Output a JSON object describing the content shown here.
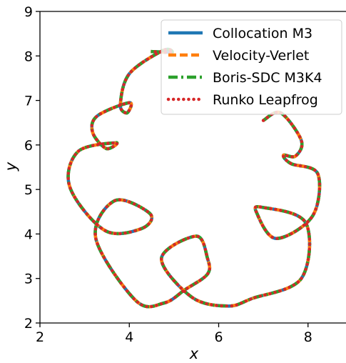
{
  "chart_data": {
    "type": "line",
    "title": "",
    "xlabel": "x",
    "ylabel": "y",
    "xlim": [
      2.0,
      8.85
    ],
    "ylim": [
      2.0,
      9.0
    ],
    "xticks": [
      2,
      4,
      6,
      8
    ],
    "yticks": [
      2,
      3,
      4,
      5,
      6,
      7,
      8,
      9
    ],
    "xtick_labels": [
      "2",
      "4",
      "6",
      "8"
    ],
    "ytick_labels": [
      "2",
      "3",
      "4",
      "5",
      "6",
      "7",
      "8",
      "9"
    ],
    "grid": false,
    "legend_position": "top-right",
    "trajectory": {
      "x": [
        7.0,
        7.39,
        7.85,
        7.72,
        7.45,
        7.62,
        8.22,
        8.1,
        7.28,
        6.85,
        6.97,
        7.95,
        7.85,
        6.75,
        6.2,
        5.4,
        4.72,
        5.5,
        5.75,
        5.75,
        5.25,
        4.78,
        4.15,
        3.25,
        3.68,
        4.47,
        4.27,
        3.45,
        2.67,
        2.85,
        3.7,
        3.48,
        3.18,
        3.28,
        4.0,
        3.95,
        3.8,
        4.0,
        4.75,
        4.95,
        4.48
      ],
      "y": [
        6.55,
        6.72,
        6.1,
        5.75,
        5.77,
        5.58,
        5.35,
        4.4,
        3.9,
        4.48,
        4.6,
        4.25,
        3.0,
        2.55,
        2.38,
        2.58,
        3.45,
        3.95,
        3.45,
        3.1,
        2.75,
        2.45,
        2.5,
        3.9,
        4.75,
        4.45,
        4.12,
        4.08,
        5.05,
        5.85,
        6.05,
        5.92,
        6.28,
        6.65,
        6.95,
        6.72,
        6.9,
        7.6,
        8.12,
        8.08,
        8.1
      ]
    },
    "series": [
      {
        "name": "Collocation M3",
        "color": "#1f77b4",
        "style": "solid"
      },
      {
        "name": "Velocity-Verlet",
        "color": "#ff7f0e",
        "style": "dashed"
      },
      {
        "name": "Boris-SDC M3K4",
        "color": "#2ca02c",
        "style": "dashdot"
      },
      {
        "name": "Runko Leapfrog",
        "color": "#d62728",
        "style": "dotted"
      }
    ]
  }
}
